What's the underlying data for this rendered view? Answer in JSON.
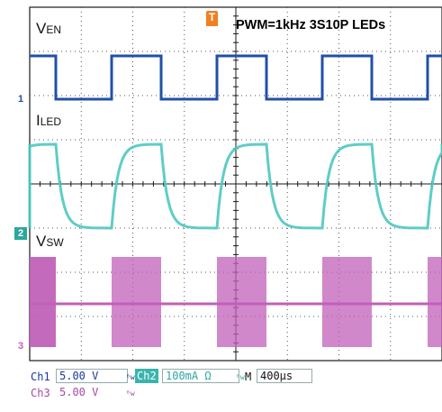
{
  "title": "PWM=1kHz 3S10P LEDs",
  "channels": {
    "ven": {
      "label_main": "V",
      "label_sub": "EN",
      "marker": "1",
      "color": "#2050a8"
    },
    "iled": {
      "label_main": "I",
      "label_sub": "LED",
      "marker": "2",
      "color": "#4cc8c0"
    },
    "vsw": {
      "label_main": "V",
      "label_sub": "SW",
      "marker": "3",
      "color": "#c060b8"
    }
  },
  "trigger_marker": "T",
  "status_bar": {
    "ch1_label": "Ch1",
    "ch1_scale": "5.00 V",
    "ch2_label": "Ch2",
    "ch2_scale": "100mA Ω",
    "timebase_label": "M",
    "timebase_value": "400µs",
    "ch3_label": "Ch3",
    "ch3_scale": "5.00 V"
  },
  "colors": {
    "grid": "#1a1a1a",
    "ch1": "#2050a8",
    "ch2": "#4cc8c0",
    "ch3": "#c060b8",
    "trigger": "#f08020",
    "status_text": "#1a3a9a"
  }
}
